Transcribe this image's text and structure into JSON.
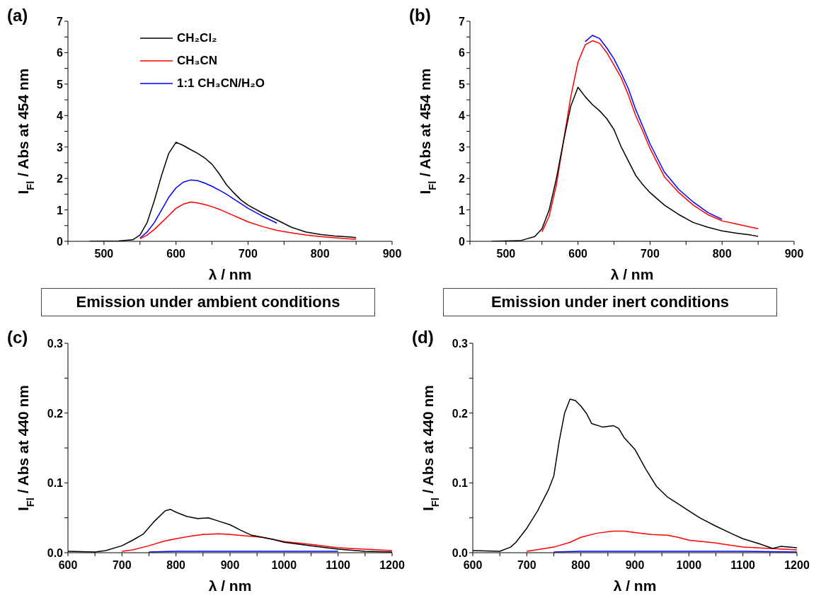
{
  "chart_data": [
    {
      "type": "line",
      "title": "(a)",
      "xlabel": "λ / nm",
      "ylabel": "I$_{Fl}$ / Abs at 454 nm",
      "legend": "top",
      "annotations": [
        "Emission under ambient conditions"
      ],
      "xlim": [
        450,
        900
      ],
      "xticks": [
        {
          "value": 450,
          "label": null
        },
        500,
        {
          "value": 550,
          "label": null
        },
        600,
        {
          "value": 650,
          "label": null
        },
        700,
        {
          "value": 750,
          "label": null
        },
        800,
        {
          "value": 850,
          "label": null
        },
        900
      ],
      "ylim": [
        0,
        7
      ],
      "yticks": [
        0,
        {
          "value": 0.5,
          "label": null
        },
        1,
        {
          "value": 1.5,
          "label": null
        },
        2,
        {
          "value": 2.5,
          "label": null
        },
        3,
        {
          "value": 3.5,
          "label": null
        },
        4,
        {
          "value": 4.5,
          "label": null
        },
        5,
        {
          "value": 5.5,
          "label": null
        },
        6,
        {
          "value": 6.5,
          "label": null
        },
        7
      ],
      "series": [
        {
          "name": "CH₂Cl₂",
          "color": "#000000",
          "x": [
            480,
            520,
            540,
            550,
            560,
            570,
            580,
            590,
            600,
            610,
            620,
            630,
            640,
            650,
            660,
            670,
            680,
            690,
            700,
            720,
            740,
            760,
            780,
            800,
            820,
            840,
            850
          ],
          "values": [
            0,
            0.01,
            0.05,
            0.2,
            0.6,
            1.3,
            2.1,
            2.8,
            3.15,
            3.05,
            2.92,
            2.8,
            2.65,
            2.45,
            2.15,
            1.8,
            1.55,
            1.32,
            1.15,
            0.9,
            0.68,
            0.45,
            0.3,
            0.22,
            0.17,
            0.14,
            0.12
          ]
        },
        {
          "name": "CH₃CN",
          "color": "#ff0000",
          "x": [
            550,
            560,
            570,
            580,
            590,
            600,
            610,
            620,
            630,
            640,
            650,
            660,
            670,
            680,
            690,
            700,
            720,
            740,
            760,
            780,
            800,
            820,
            840,
            850
          ],
          "values": [
            0.08,
            0.2,
            0.38,
            0.6,
            0.82,
            1.05,
            1.18,
            1.25,
            1.22,
            1.17,
            1.1,
            1.02,
            0.92,
            0.82,
            0.72,
            0.62,
            0.47,
            0.35,
            0.27,
            0.2,
            0.15,
            0.11,
            0.08,
            0.07
          ]
        },
        {
          "name": "1:1 CH₃CN/H₂O",
          "color": "#0000ff",
          "x": [
            550,
            560,
            570,
            580,
            590,
            600,
            610,
            620,
            630,
            640,
            650,
            660,
            670,
            680,
            690,
            700,
            720,
            740
          ],
          "values": [
            0.1,
            0.3,
            0.6,
            1.0,
            1.4,
            1.7,
            1.88,
            1.95,
            1.93,
            1.85,
            1.75,
            1.63,
            1.5,
            1.35,
            1.2,
            1.05,
            0.8,
            0.58
          ]
        }
      ]
    },
    {
      "type": "line",
      "title": "(b)",
      "xlabel": "λ / nm",
      "ylabel": "I$_{Fl}$ / Abs at 454 nm",
      "annotations": [
        "Emission under inert conditions"
      ],
      "xlim": [
        450,
        900
      ],
      "xticks": [
        {
          "value": 450,
          "label": null
        },
        500,
        {
          "value": 550,
          "label": null
        },
        600,
        {
          "value": 650,
          "label": null
        },
        700,
        {
          "value": 750,
          "label": null
        },
        800,
        {
          "value": 850,
          "label": null
        },
        900
      ],
      "ylim": [
        0,
        7
      ],
      "yticks": [
        0,
        {
          "value": 0.5,
          "label": null
        },
        1,
        {
          "value": 1.5,
          "label": null
        },
        2,
        {
          "value": 2.5,
          "label": null
        },
        3,
        {
          "value": 3.5,
          "label": null
        },
        4,
        {
          "value": 4.5,
          "label": null
        },
        5,
        {
          "value": 5.5,
          "label": null
        },
        6,
        {
          "value": 6.5,
          "label": null
        },
        7
      ],
      "series": [
        {
          "color": "#000000",
          "x": [
            480,
            520,
            540,
            550,
            560,
            570,
            580,
            590,
            600,
            610,
            620,
            630,
            640,
            650,
            660,
            670,
            680,
            690,
            700,
            720,
            740,
            760,
            780,
            800,
            820,
            840,
            850
          ],
          "values": [
            0,
            0.02,
            0.15,
            0.4,
            1.0,
            2.0,
            3.2,
            4.3,
            4.9,
            4.6,
            4.35,
            4.15,
            3.9,
            3.55,
            3.0,
            2.55,
            2.1,
            1.8,
            1.55,
            1.15,
            0.85,
            0.6,
            0.45,
            0.33,
            0.26,
            0.2,
            0.16
          ]
        },
        {
          "color": "#ff0000",
          "x": [
            550,
            560,
            570,
            580,
            590,
            600,
            610,
            620,
            630,
            640,
            650,
            660,
            670,
            680,
            690,
            700,
            720,
            740,
            760,
            780,
            800,
            820,
            840,
            850
          ],
          "values": [
            0.3,
            0.8,
            1.8,
            3.2,
            4.6,
            5.7,
            6.25,
            6.38,
            6.3,
            6.0,
            5.6,
            5.2,
            4.65,
            4.0,
            3.5,
            2.95,
            2.05,
            1.55,
            1.15,
            0.85,
            0.65,
            0.55,
            0.45,
            0.4
          ]
        },
        {
          "color": "#0000ff",
          "x": [
            610,
            620,
            630,
            640,
            650,
            660,
            670,
            680,
            690,
            700,
            720,
            740,
            760,
            780,
            800
          ],
          "values": [
            6.35,
            6.55,
            6.45,
            6.15,
            5.8,
            5.35,
            4.85,
            4.2,
            3.65,
            3.1,
            2.2,
            1.65,
            1.25,
            0.92,
            0.7
          ]
        }
      ]
    },
    {
      "type": "line",
      "title": "(c)",
      "xlabel": "λ / nm",
      "ylabel": "I$_{Fl}$ / Abs at 440 nm",
      "xlim": [
        600,
        1200
      ],
      "xticks": [
        600,
        {
          "value": 650,
          "label": null
        },
        700,
        {
          "value": 750,
          "label": null
        },
        800,
        {
          "value": 850,
          "label": null
        },
        900,
        {
          "value": 950,
          "label": null
        },
        1000,
        {
          "value": 1050,
          "label": null
        },
        1100,
        {
          "value": 1150,
          "label": null
        },
        1200
      ],
      "ylim": [
        0,
        0.3
      ],
      "yticks": [
        {
          "value": 0,
          "label": "0.0"
        },
        {
          "value": 0.05,
          "label": null
        },
        0.1,
        {
          "value": 0.15,
          "label": null
        },
        0.2,
        {
          "value": 0.25,
          "label": null
        },
        0.3
      ],
      "series": [
        {
          "color": "#000000",
          "x": [
            600,
            650,
            670,
            700,
            720,
            740,
            760,
            780,
            790,
            800,
            820,
            840,
            860,
            880,
            900,
            920,
            940,
            960,
            980,
            1000,
            1050,
            1100,
            1150,
            1200
          ],
          "values": [
            0.002,
            0.001,
            0.003,
            0.01,
            0.018,
            0.027,
            0.045,
            0.06,
            0.062,
            0.058,
            0.052,
            0.049,
            0.05,
            0.045,
            0.04,
            0.032,
            0.025,
            0.022,
            0.019,
            0.015,
            0.01,
            0.005,
            0.002,
            0.001
          ]
        },
        {
          "color": "#ff0000",
          "x": [
            700,
            720,
            750,
            780,
            800,
            830,
            850,
            880,
            900,
            930,
            960,
            1000,
            1050,
            1100,
            1150,
            1200
          ],
          "values": [
            0.002,
            0.004,
            0.01,
            0.017,
            0.02,
            0.024,
            0.026,
            0.027,
            0.026,
            0.024,
            0.022,
            0.016,
            0.012,
            0.007,
            0.005,
            0.003
          ]
        },
        {
          "color": "#0000ff",
          "x": [
            750,
            800,
            900,
            1000,
            1100
          ],
          "values": [
            0.001,
            0.002,
            0.002,
            0.002,
            0.002
          ]
        }
      ]
    },
    {
      "type": "line",
      "title": "(d)",
      "xlabel": "λ / nm",
      "ylabel": "I$_{Fl}$ / Abs at 440 nm",
      "xlim": [
        600,
        1200
      ],
      "xticks": [
        600,
        {
          "value": 650,
          "label": null
        },
        700,
        {
          "value": 750,
          "label": null
        },
        800,
        {
          "value": 850,
          "label": null
        },
        900,
        {
          "value": 950,
          "label": null
        },
        1000,
        {
          "value": 1050,
          "label": null
        },
        1100,
        {
          "value": 1150,
          "label": null
        },
        1200
      ],
      "ylim": [
        0,
        0.3
      ],
      "yticks": [
        {
          "value": 0,
          "label": "0.0"
        },
        {
          "value": 0.05,
          "label": null
        },
        0.1,
        {
          "value": 0.15,
          "label": null
        },
        0.2,
        {
          "value": 0.25,
          "label": null
        },
        0.3
      ],
      "series": [
        {
          "color": "#000000",
          "x": [
            600,
            650,
            670,
            680,
            700,
            720,
            740,
            750,
            760,
            770,
            780,
            790,
            800,
            810,
            820,
            840,
            860,
            870,
            880,
            900,
            920,
            940,
            960,
            980,
            1000,
            1020,
            1050,
            1080,
            1100,
            1130,
            1155,
            1170,
            1200
          ],
          "values": [
            0.003,
            0.002,
            0.008,
            0.015,
            0.035,
            0.06,
            0.09,
            0.11,
            0.16,
            0.2,
            0.22,
            0.218,
            0.21,
            0.2,
            0.185,
            0.18,
            0.182,
            0.178,
            0.165,
            0.148,
            0.12,
            0.095,
            0.08,
            0.07,
            0.06,
            0.05,
            0.038,
            0.027,
            0.02,
            0.013,
            0.006,
            0.009,
            0.007
          ]
        },
        {
          "color": "#ff0000",
          "x": [
            700,
            750,
            780,
            800,
            830,
            860,
            880,
            900,
            930,
            960,
            980,
            1000,
            1050,
            1100,
            1200
          ],
          "values": [
            0.002,
            0.008,
            0.015,
            0.022,
            0.028,
            0.031,
            0.031,
            0.029,
            0.026,
            0.025,
            0.022,
            0.018,
            0.014,
            0.008,
            0.004
          ]
        },
        {
          "color": "#0000ff",
          "x": [
            750,
            800,
            900,
            1000,
            1100,
            1200
          ],
          "values": [
            0.001,
            0.002,
            0.002,
            0.002,
            0.002,
            0.001
          ]
        }
      ]
    }
  ]
}
